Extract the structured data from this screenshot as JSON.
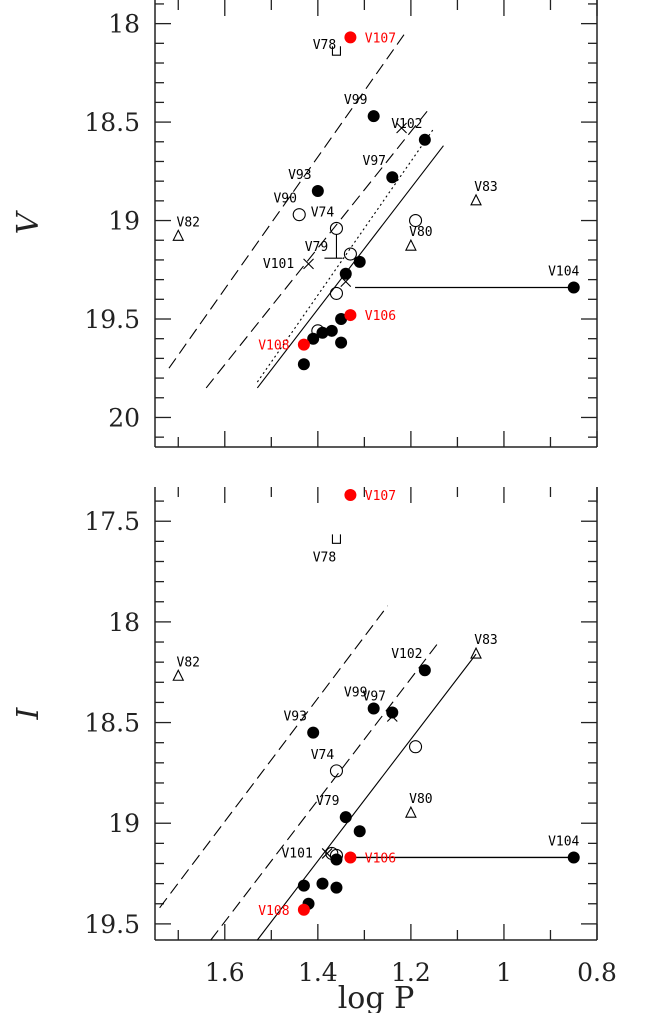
{
  "chart_data": [
    {
      "type": "scatter",
      "panel": "top",
      "ylabel": "V",
      "xlabel": "",
      "xlim": [
        1.75,
        0.8
      ],
      "ylim": [
        20.15,
        17.88
      ],
      "y_inverted": true,
      "x_inverted": true,
      "yticks": [
        18,
        18.5,
        19,
        19.5,
        20
      ],
      "ytick_labels": [
        "18",
        "18.5",
        "19",
        "19.5",
        "20"
      ],
      "filled_black": [
        {
          "x": 1.28,
          "y": 18.47,
          "label": "V99"
        },
        {
          "x": 1.17,
          "y": 18.59,
          "label": "V102"
        },
        {
          "x": 1.24,
          "y": 18.78,
          "label": "V97"
        },
        {
          "x": 1.4,
          "y": 18.85,
          "label": "V93"
        },
        {
          "x": 1.31,
          "y": 19.21,
          "label": ""
        },
        {
          "x": 1.34,
          "y": 19.27,
          "label": ""
        },
        {
          "x": 1.35,
          "y": 19.5,
          "label": ""
        },
        {
          "x": 1.37,
          "y": 19.56,
          "label": ""
        },
        {
          "x": 1.39,
          "y": 19.57,
          "label": ""
        },
        {
          "x": 1.41,
          "y": 19.6,
          "label": ""
        },
        {
          "x": 1.35,
          "y": 19.62,
          "label": ""
        },
        {
          "x": 1.43,
          "y": 19.73,
          "label": ""
        },
        {
          "x": 0.85,
          "y": 19.34,
          "label": "V104"
        }
      ],
      "filled_red": [
        {
          "x": 1.33,
          "y": 18.07,
          "label": "V107"
        },
        {
          "x": 1.33,
          "y": 19.48,
          "label": "V106"
        },
        {
          "x": 1.43,
          "y": 19.63,
          "label": "V108"
        }
      ],
      "open_circles": [
        {
          "x": 1.44,
          "y": 18.97,
          "label": "V90"
        },
        {
          "x": 1.36,
          "y": 19.04,
          "label": "V74"
        },
        {
          "x": 1.33,
          "y": 19.17,
          "label": ""
        },
        {
          "x": 1.19,
          "y": 19.0,
          "label": ""
        },
        {
          "x": 1.36,
          "y": 19.37,
          "label": ""
        },
        {
          "x": 1.4,
          "y": 19.56,
          "label": ""
        }
      ],
      "crosses": [
        {
          "x": 1.22,
          "y": 18.53,
          "label": ""
        },
        {
          "x": 1.42,
          "y": 19.22,
          "label": "V101"
        },
        {
          "x": 1.34,
          "y": 19.31,
          "label": ""
        }
      ],
      "triangles": [
        {
          "x": 1.7,
          "y": 19.08,
          "label": "V82"
        },
        {
          "x": 1.06,
          "y": 18.9,
          "label": "V83"
        },
        {
          "x": 1.2,
          "y": 19.13,
          "label": "V80"
        }
      ],
      "squares": [
        {
          "x": 1.36,
          "y": 18.14,
          "label": "V78"
        }
      ],
      "upper_limit": {
        "x": 1.36,
        "y": 19.13,
        "label": "V79"
      },
      "period_range": {
        "x0": 1.32,
        "x1": 0.85,
        "y": 19.34,
        "label": "V104"
      },
      "lines": [
        {
          "style": "long-dash",
          "x0": 1.72,
          "y0": 19.75,
          "x1": 1.21,
          "y1": 18.04
        },
        {
          "style": "long-dash",
          "x0": 1.64,
          "y0": 19.85,
          "x1": 1.16,
          "y1": 18.43
        },
        {
          "style": "solid",
          "x0": 1.53,
          "y0": 19.85,
          "x1": 1.13,
          "y1": 18.62
        },
        {
          "style": "dotted",
          "x0": 1.53,
          "y0": 19.82,
          "x1": 1.15,
          "y1": 18.53
        }
      ]
    },
    {
      "type": "scatter",
      "panel": "bottom",
      "ylabel": "I",
      "xlabel": "log P",
      "xlim": [
        1.75,
        0.8
      ],
      "ylim": [
        19.58,
        17.33
      ],
      "y_inverted": true,
      "x_inverted": true,
      "xticks": [
        1.6,
        1.4,
        1.2,
        1,
        0.8
      ],
      "xtick_labels": [
        "1.6",
        "1.4",
        "1.2",
        "1",
        "0.8"
      ],
      "yticks": [
        17.5,
        18,
        18.5,
        19,
        19.5
      ],
      "ytick_labels": [
        "17.5",
        "18",
        "18.5",
        "19",
        "19.5"
      ],
      "filled_black": [
        {
          "x": 1.41,
          "y": 18.55,
          "label": "V93"
        },
        {
          "x": 1.28,
          "y": 18.43,
          "label": "V99"
        },
        {
          "x": 1.24,
          "y": 18.45,
          "label": "V97"
        },
        {
          "x": 1.17,
          "y": 18.24,
          "label": "V102"
        },
        {
          "x": 1.34,
          "y": 18.97,
          "label": "V79"
        },
        {
          "x": 1.31,
          "y": 19.04,
          "label": ""
        },
        {
          "x": 1.36,
          "y": 19.18,
          "label": ""
        },
        {
          "x": 1.43,
          "y": 19.31,
          "label": ""
        },
        {
          "x": 1.39,
          "y": 19.3,
          "label": ""
        },
        {
          "x": 1.36,
          "y": 19.32,
          "label": ""
        },
        {
          "x": 1.42,
          "y": 19.4,
          "label": ""
        },
        {
          "x": 0.85,
          "y": 19.17,
          "label": "V104"
        }
      ],
      "filled_red": [
        {
          "x": 1.33,
          "y": 17.37,
          "label": "V107"
        },
        {
          "x": 1.33,
          "y": 19.17,
          "label": "V106"
        },
        {
          "x": 1.43,
          "y": 19.43,
          "label": "V108"
        }
      ],
      "open_circles": [
        {
          "x": 1.36,
          "y": 18.74,
          "label": "V74"
        },
        {
          "x": 1.19,
          "y": 18.62,
          "label": ""
        },
        {
          "x": 1.37,
          "y": 19.15,
          "label": ""
        },
        {
          "x": 1.36,
          "y": 19.16,
          "label": ""
        }
      ],
      "crosses": [
        {
          "x": 1.24,
          "y": 18.47,
          "label": ""
        },
        {
          "x": 1.38,
          "y": 19.15,
          "label": "V101"
        }
      ],
      "triangles": [
        {
          "x": 1.7,
          "y": 18.27,
          "label": "V82"
        },
        {
          "x": 1.06,
          "y": 18.16,
          "label": "V83"
        },
        {
          "x": 1.2,
          "y": 18.95,
          "label": "V80"
        }
      ],
      "squares": [
        {
          "x": 1.36,
          "y": 17.59,
          "label": "V78"
        }
      ],
      "period_range": {
        "x0": 1.33,
        "x1": 0.85,
        "y": 19.17,
        "label": "V104"
      },
      "lines": [
        {
          "style": "long-dash",
          "x0": 1.74,
          "y0": 19.42,
          "x1": 1.25,
          "y1": 17.92
        },
        {
          "style": "long-dash",
          "x0": 1.63,
          "y0": 19.58,
          "x1": 1.14,
          "y1": 18.1
        },
        {
          "style": "solid",
          "x0": 1.53,
          "y0": 19.58,
          "x1": 1.06,
          "y1": 18.16
        }
      ]
    }
  ],
  "colors": {
    "black": "#000000",
    "red": "#ff0000",
    "axis": "#222222"
  }
}
